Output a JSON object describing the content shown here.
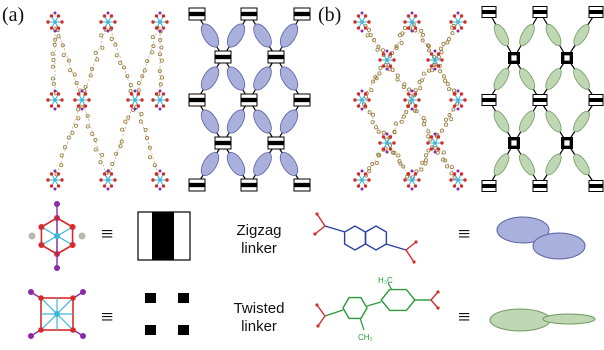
{
  "panels": {
    "a_label": "(a)",
    "b_label": "(b)"
  },
  "symbols": {
    "equivalent": "≡"
  },
  "rows": [
    {
      "name": "zigzag",
      "word1": "Zigzag",
      "word2": "linker"
    },
    {
      "name": "twisted",
      "word1": "Twisted",
      "word2": "linker"
    }
  ],
  "colors": {
    "zigzag_ellipse_fill": "#aab0dc",
    "zigzag_ellipse_stroke": "#5a5fa8",
    "twisted_ellipse_fill": "#bfd8b3",
    "twisted_ellipse_stroke": "#6f9a62",
    "zigzag_molecule": "#2c3fa0",
    "twisted_molecule": "#2a9a3a",
    "oxygen": "#d62b2b",
    "metal": "#3bb5d8",
    "carbon": "#9a7a3a",
    "halide": "#8a2aa8",
    "black": "#000000"
  },
  "molecule_labels": {
    "methyl_top": "H₃C",
    "methyl_bottom": "CH₃"
  }
}
